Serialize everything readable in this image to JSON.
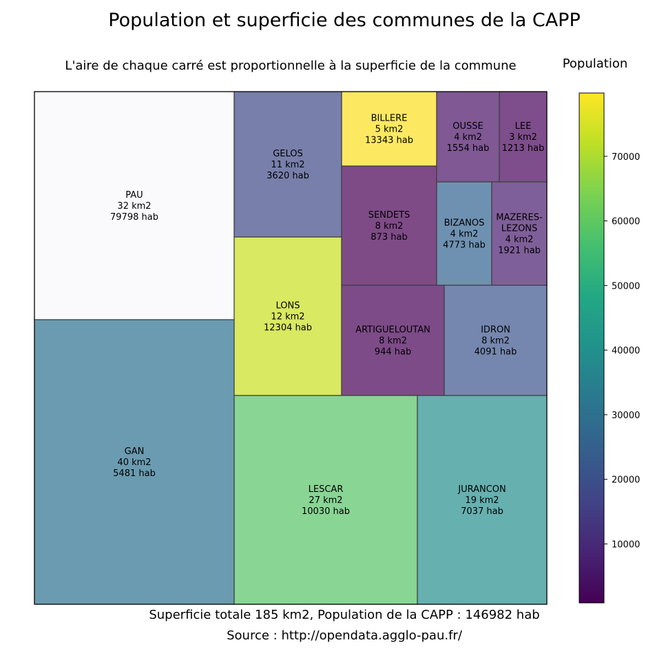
{
  "chart_data": {
    "type": "treemap",
    "title": "Population et superficie des communes de la CAPP",
    "subtitle": "L'aire de chaque carré est proportionnelle à la superficie de la commune",
    "colorbar": {
      "label": "Population",
      "colormap": "viridis",
      "range": [
        873,
        79798
      ],
      "ticks": [
        10000,
        20000,
        30000,
        40000,
        50000,
        60000,
        70000
      ],
      "tick_labels": [
        "10000",
        "20000",
        "30000",
        "40000",
        "50000",
        "60000",
        "70000"
      ]
    },
    "cells": [
      {
        "name": "PAU",
        "area_km2": 32,
        "population": 79798,
        "area_label": "32 km2",
        "pop_label": "79798 hab",
        "color": "#fafafd"
      },
      {
        "name": "GAN",
        "area_km2": 40,
        "population": 5481,
        "area_label": "40 km2",
        "pop_label": "5481 hab",
        "color": "#6b9bb0"
      },
      {
        "name": "GELOS",
        "area_km2": 11,
        "population": 3620,
        "area_label": "11 km2",
        "pop_label": "3620 hab",
        "color": "#777faa"
      },
      {
        "name": "LONS",
        "area_km2": 12,
        "population": 12304,
        "area_label": "12 km2",
        "pop_label": "12304 hab",
        "color": "#d9e962"
      },
      {
        "name": "BILLERE",
        "area_km2": 5,
        "population": 13343,
        "area_label": "5 km2",
        "pop_label": "13343 hab",
        "color": "#fde961"
      },
      {
        "name": "SENDETS",
        "area_km2": 8,
        "population": 873,
        "area_label": "8 km2",
        "pop_label": "873 hab",
        "color": "#7e4b87"
      },
      {
        "name": "OUSSE",
        "area_km2": 4,
        "population": 1554,
        "area_label": "4 km2",
        "pop_label": "1554 hab",
        "color": "#7f5894"
      },
      {
        "name": "LEE",
        "area_km2": 3,
        "population": 1213,
        "area_label": "3 km2",
        "pop_label": "1213 hab",
        "color": "#7d4e8b"
      },
      {
        "name": "BIZANOS",
        "area_km2": 4,
        "population": 4773,
        "area_label": "4 km2",
        "pop_label": "4773 hab",
        "color": "#6e91b1"
      },
      {
        "name": "MAZERES-\nLEZONS",
        "area_km2": 4,
        "population": 1921,
        "area_label": "4 km2",
        "pop_label": "1921 hab",
        "color": "#7f5f99"
      },
      {
        "name": "ARTIGUELOUTAN",
        "area_km2": 8,
        "population": 944,
        "area_label": "8 km2",
        "pop_label": "944 hab",
        "color": "#7d4c88"
      },
      {
        "name": "IDRON",
        "area_km2": 8,
        "population": 4091,
        "area_label": "8 km2",
        "pop_label": "4091 hab",
        "color": "#7687af"
      },
      {
        "name": "LESCAR",
        "area_km2": 27,
        "population": 10030,
        "area_label": "27 km2",
        "pop_label": "10030 hab",
        "color": "#88d594"
      },
      {
        "name": "JURANCON",
        "area_km2": 19,
        "population": 7037,
        "area_label": "19 km2",
        "pop_label": "7037 hab",
        "color": "#66b0af"
      }
    ],
    "footer": "Superficie totale 185 km2, Population de la CAPP : 146982 hab",
    "source": "Source : http://opendata.agglo-pau.fr/"
  }
}
